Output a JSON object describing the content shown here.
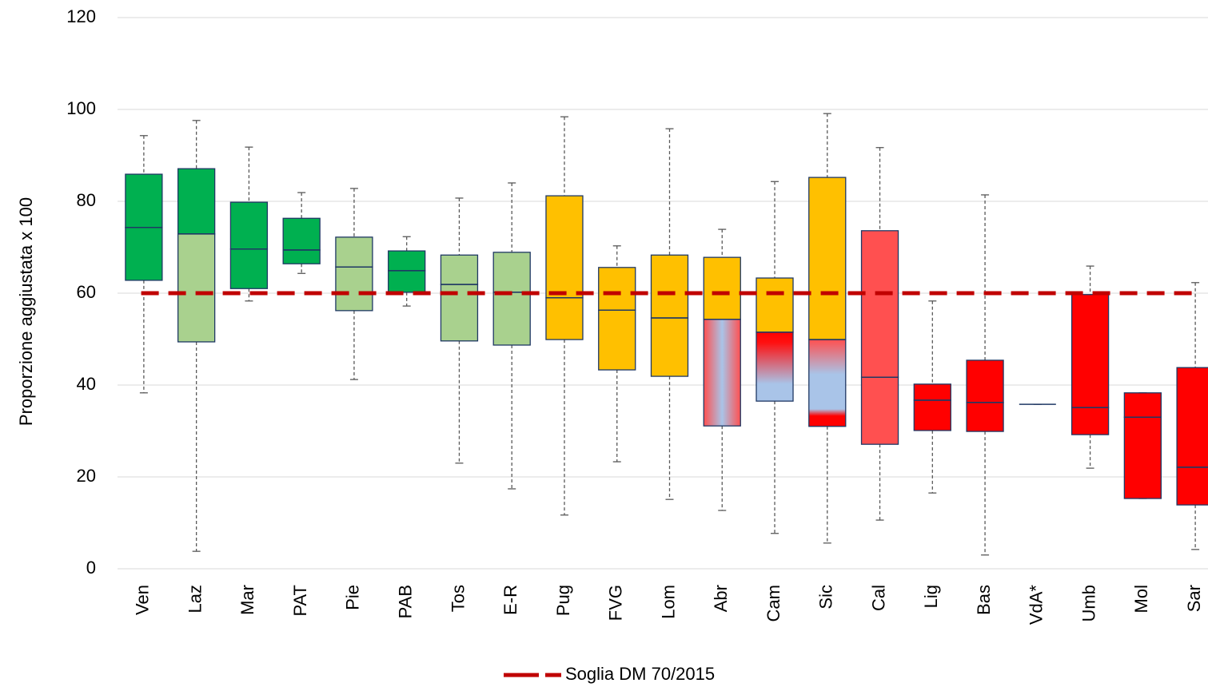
{
  "chart_data": {
    "type": "box",
    "y_axis_label": "Proporzione aggiustata x 100",
    "categories": [
      "Ven",
      "Laz",
      "Mar",
      "PAT",
      "Pie",
      "PAB",
      "Tos",
      "E-R",
      "Pug",
      "FVG",
      "Lom",
      "Abr",
      "Cam",
      "Sic",
      "Cal",
      "Lig",
      "Bas",
      "VdA*",
      "Umb",
      "Mol",
      "Sar"
    ],
    "whisker_high": [
      94.3,
      97.6,
      91.8,
      81.9,
      82.8,
      72.3,
      80.7,
      84.0,
      98.4,
      70.3,
      95.8,
      73.9,
      84.3,
      99.1,
      91.7,
      58.3,
      81.4,
      35.8,
      65.9,
      38.3,
      62.3
    ],
    "q3": [
      85.9,
      87.1,
      79.8,
      76.3,
      72.2,
      69.2,
      68.3,
      68.9,
      81.2,
      65.6,
      68.3,
      67.8,
      63.3,
      85.2,
      73.6,
      40.2,
      45.4,
      35.8,
      59.7,
      38.3,
      43.8
    ],
    "median": [
      74.3,
      72.9,
      69.6,
      69.4,
      65.7,
      64.9,
      61.9,
      60.2,
      59.0,
      56.3,
      54.6,
      54.3,
      51.5,
      49.9,
      41.7,
      36.7,
      36.2,
      35.8,
      35.1,
      33.0,
      22.1
    ],
    "q1": [
      62.8,
      49.4,
      61.0,
      66.4,
      56.2,
      60.2,
      49.6,
      48.7,
      49.9,
      43.3,
      41.9,
      31.1,
      36.5,
      31.0,
      27.1,
      30.1,
      29.9,
      35.8,
      29.2,
      15.3,
      13.9
    ],
    "whisker_low": [
      38.3,
      3.8,
      58.3,
      64.3,
      41.2,
      57.2,
      23.0,
      17.4,
      11.7,
      23.3,
      15.1,
      12.7,
      7.7,
      5.6,
      10.6,
      16.5,
      3.0,
      35.8,
      21.9,
      15.3,
      4.2
    ],
    "upper_colors": [
      "#00b050",
      "#00b050",
      "#00b050",
      "#00b050",
      "#a9d18e",
      "#00b050",
      "#a9d18e",
      "#a9d18e",
      "#ffc000",
      "#ffc000",
      "#ffc000",
      "#ffc000",
      "#ffc000",
      "#ffc000",
      "#ff5050",
      "#ff0000",
      "#ff0000",
      "#ff0000",
      "#ff0000",
      "#ff0000",
      "#ff0000"
    ],
    "lower_colors": [
      "#00b050",
      "#a9d18e",
      "#00b050",
      "#00b050",
      "#a9d18e",
      "#00b050",
      "#a9d18e",
      "#a9d18e",
      "#ffc000",
      "#ffc000",
      "#ffc000",
      "url(#g-abr)",
      "url(#g-cam)",
      "url(#g-sic)",
      "#ff5050",
      "#ff0000",
      "#ff0000",
      "#ff0000",
      "#ff0000",
      "#ff0000",
      "#ff0000"
    ],
    "reference_line": {
      "name": "Soglia DM 70/2015",
      "value": 60,
      "color": "#c00000"
    },
    "ylim": [
      0,
      120
    ],
    "yticks": [
      0,
      20,
      40,
      60,
      80,
      100,
      120
    ],
    "grid": true
  }
}
